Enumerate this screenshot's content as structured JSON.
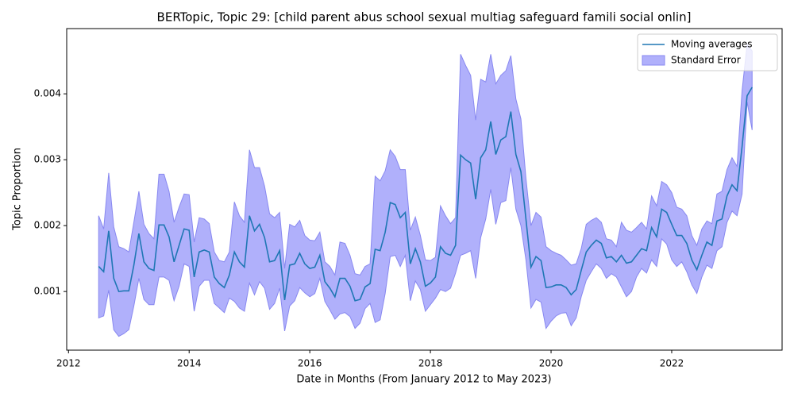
{
  "chart_data": {
    "type": "line",
    "title": "BERTopic, Topic 29: [child parent abus school sexual multiag safeguard famili social onlin]",
    "xlabel": "Date in Months (From January 2012 to May 2023)",
    "ylabel": "Topic Proportion",
    "xlim": [
      2011.97,
      2023.83
    ],
    "xticks": [
      2012,
      2014,
      2016,
      2018,
      2020,
      2022
    ],
    "ylim": [
      0.00011,
      0.00499
    ],
    "yticks": [
      0.001,
      0.002,
      0.003,
      0.004
    ],
    "legend": "upper right",
    "x": [
      2012.5,
      2012.5833,
      2012.6667,
      2012.75,
      2012.8333,
      2012.9167,
      2013,
      2013.0833,
      2013.1667,
      2013.25,
      2013.3333,
      2013.4167,
      2013.5,
      2013.5833,
      2013.6667,
      2013.75,
      2013.8333,
      2013.9167,
      2014,
      2014.0833,
      2014.1667,
      2014.25,
      2014.3333,
      2014.4167,
      2014.5,
      2014.5833,
      2014.6667,
      2014.75,
      2014.8333,
      2014.9167,
      2015,
      2015.0833,
      2015.1667,
      2015.25,
      2015.3333,
      2015.4167,
      2015.5,
      2015.5833,
      2015.6667,
      2015.75,
      2015.8333,
      2015.9167,
      2016,
      2016.0833,
      2016.1667,
      2016.25,
      2016.3333,
      2016.4167,
      2016.5,
      2016.5833,
      2016.6667,
      2016.75,
      2016.8333,
      2016.9167,
      2017,
      2017.0833,
      2017.1667,
      2017.25,
      2017.3333,
      2017.4167,
      2017.5,
      2017.5833,
      2017.6667,
      2017.75,
      2017.8333,
      2017.9167,
      2018,
      2018.0833,
      2018.1667,
      2018.25,
      2018.3333,
      2018.4167,
      2018.5,
      2018.5833,
      2018.6667,
      2018.75,
      2018.8333,
      2018.9167,
      2019,
      2019.0833,
      2019.1667,
      2019.25,
      2019.3333,
      2019.4167,
      2019.5,
      2019.5833,
      2019.6667,
      2019.75,
      2019.8333,
      2019.9167,
      2020,
      2020.0833,
      2020.1667,
      2020.25,
      2020.3333,
      2020.4167,
      2020.5,
      2020.5833,
      2020.6667,
      2020.75,
      2020.8333,
      2020.9167,
      2021,
      2021.0833,
      2021.1667,
      2021.25,
      2021.3333,
      2021.4167,
      2021.5,
      2021.5833,
      2021.6667,
      2021.75,
      2021.8333,
      2021.9167,
      2022,
      2022.0833,
      2022.1667,
      2022.25,
      2022.3333,
      2022.4167,
      2022.5,
      2022.5833,
      2022.6667,
      2022.75,
      2022.8333,
      2022.9167,
      2023,
      2023.0833,
      2023.1667,
      2023.25,
      2023.3333
    ],
    "series": [
      {
        "name": "Moving averages",
        "color": "#1f77b4",
        "values": [
          0.00138,
          0.0013,
          0.00192,
          0.0012,
          0.001,
          0.00101,
          0.00101,
          0.0014,
          0.00188,
          0.00145,
          0.00135,
          0.00132,
          0.00201,
          0.00201,
          0.00183,
          0.00145,
          0.0017,
          0.00195,
          0.00193,
          0.00122,
          0.0016,
          0.00163,
          0.0016,
          0.00122,
          0.00112,
          0.00106,
          0.00125,
          0.0016,
          0.00145,
          0.00137,
          0.00215,
          0.00192,
          0.00202,
          0.00182,
          0.00145,
          0.00147,
          0.00162,
          0.00087,
          0.0014,
          0.00142,
          0.00158,
          0.00142,
          0.00135,
          0.00137,
          0.00155,
          0.00115,
          0.00105,
          0.00092,
          0.0012,
          0.0012,
          0.00108,
          0.00086,
          0.00088,
          0.00107,
          0.00112,
          0.00164,
          0.00162,
          0.0019,
          0.00235,
          0.00232,
          0.00212,
          0.0022,
          0.00142,
          0.00165,
          0.00145,
          0.00108,
          0.00113,
          0.00122,
          0.00168,
          0.00158,
          0.00155,
          0.0017,
          0.00307,
          0.003,
          0.00295,
          0.0024,
          0.00303,
          0.00315,
          0.00358,
          0.00308,
          0.0033,
          0.00335,
          0.00373,
          0.00308,
          0.00282,
          0.0021,
          0.00137,
          0.00153,
          0.00147,
          0.00106,
          0.00107,
          0.0011,
          0.0011,
          0.00106,
          0.00095,
          0.00103,
          0.00132,
          0.0016,
          0.0017,
          0.00178,
          0.00173,
          0.00151,
          0.00153,
          0.00145,
          0.00155,
          0.00143,
          0.00145,
          0.00155,
          0.00165,
          0.00162,
          0.00197,
          0.00183,
          0.00225,
          0.0022,
          0.00202,
          0.00185,
          0.00185,
          0.00173,
          0.00148,
          0.00133,
          0.00155,
          0.00175,
          0.0017,
          0.00207,
          0.0021,
          0.00245,
          0.00262,
          0.00253,
          0.0032,
          0.00397,
          0.0041
        ]
      }
    ],
    "band": {
      "name": "Standard Error",
      "color": "#b0b0fb",
      "edge_color": "#8888f0",
      "upper": [
        0.00215,
        0.00195,
        0.0028,
        0.00198,
        0.00168,
        0.00165,
        0.0016,
        0.00205,
        0.00252,
        0.00202,
        0.00188,
        0.0018,
        0.00278,
        0.00278,
        0.00252,
        0.00205,
        0.00228,
        0.00248,
        0.00247,
        0.00175,
        0.00212,
        0.0021,
        0.00203,
        0.0016,
        0.00147,
        0.00145,
        0.0016,
        0.00236,
        0.00215,
        0.00205,
        0.00315,
        0.00288,
        0.00288,
        0.0026,
        0.00218,
        0.00212,
        0.0022,
        0.00135,
        0.00202,
        0.00198,
        0.00208,
        0.00185,
        0.00178,
        0.00177,
        0.0019,
        0.00145,
        0.00138,
        0.00125,
        0.00175,
        0.00173,
        0.00155,
        0.00127,
        0.00125,
        0.00138,
        0.00142,
        0.00275,
        0.00268,
        0.00283,
        0.00315,
        0.00305,
        0.00285,
        0.00285,
        0.00193,
        0.00213,
        0.00185,
        0.00148,
        0.00147,
        0.00152,
        0.0023,
        0.00215,
        0.00203,
        0.00212,
        0.0046,
        0.00443,
        0.00428,
        0.0036,
        0.00422,
        0.00418,
        0.0046,
        0.00415,
        0.00428,
        0.00435,
        0.00458,
        0.00392,
        0.00362,
        0.00272,
        0.002,
        0.0022,
        0.00213,
        0.00168,
        0.00162,
        0.00158,
        0.00155,
        0.00148,
        0.0014,
        0.00142,
        0.00165,
        0.00202,
        0.00208,
        0.00212,
        0.00205,
        0.0018,
        0.00178,
        0.00168,
        0.00205,
        0.00193,
        0.0019,
        0.00197,
        0.00205,
        0.00195,
        0.00245,
        0.0023,
        0.00267,
        0.00262,
        0.0025,
        0.00228,
        0.00225,
        0.00215,
        0.00185,
        0.0017,
        0.00195,
        0.00207,
        0.00203,
        0.00248,
        0.00252,
        0.00285,
        0.00303,
        0.0029,
        0.00405,
        0.00475,
        0.00465
      ],
      "lower": [
        0.0006,
        0.00063,
        0.00102,
        0.00042,
        0.00032,
        0.00036,
        0.00042,
        0.00078,
        0.0012,
        0.00088,
        0.0008,
        0.0008,
        0.00122,
        0.00122,
        0.00117,
        0.00086,
        0.00108,
        0.00142,
        0.00138,
        0.0007,
        0.00108,
        0.00117,
        0.00117,
        0.00082,
        0.00075,
        0.00068,
        0.0009,
        0.00085,
        0.00075,
        0.0007,
        0.00113,
        0.00095,
        0.00115,
        0.00105,
        0.00073,
        0.00082,
        0.00105,
        0.0004,
        0.00078,
        0.00086,
        0.00106,
        0.00098,
        0.00092,
        0.00097,
        0.0012,
        0.00085,
        0.00072,
        0.00058,
        0.00066,
        0.00068,
        0.00062,
        0.00044,
        0.00052,
        0.00074,
        0.00082,
        0.00053,
        0.00057,
        0.00097,
        0.00153,
        0.00155,
        0.00138,
        0.00155,
        0.00086,
        0.00116,
        0.00103,
        0.0007,
        0.0008,
        0.0009,
        0.00103,
        0.001,
        0.00105,
        0.00128,
        0.00155,
        0.00158,
        0.00162,
        0.0012,
        0.00182,
        0.0021,
        0.00255,
        0.00202,
        0.00235,
        0.00238,
        0.00288,
        0.00225,
        0.002,
        0.00148,
        0.00075,
        0.00088,
        0.00084,
        0.00044,
        0.00055,
        0.00063,
        0.00067,
        0.00068,
        0.00048,
        0.0006,
        0.00092,
        0.00117,
        0.0013,
        0.00142,
        0.00135,
        0.0012,
        0.00127,
        0.00122,
        0.00107,
        0.00092,
        0.001,
        0.00122,
        0.00135,
        0.00128,
        0.00148,
        0.00138,
        0.0018,
        0.00172,
        0.00148,
        0.00138,
        0.00145,
        0.0013,
        0.0011,
        0.00097,
        0.00122,
        0.0014,
        0.00135,
        0.00162,
        0.00168,
        0.00205,
        0.00222,
        0.00215,
        0.00248,
        0.00388,
        0.00345
      ]
    }
  }
}
